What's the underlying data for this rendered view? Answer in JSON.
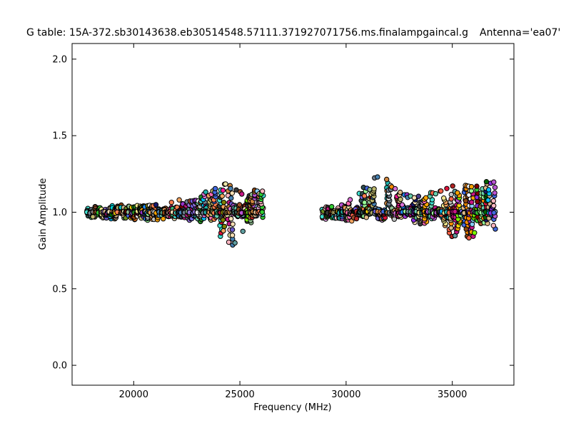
{
  "chart_data": {
    "type": "scatter",
    "title_left": "G table: 15A-372.sb30143638.eb30514548.57111.371927071756.ms.finalampgaincal.g",
    "title_right": "Antenna='ea07'",
    "xlabel": "Frequency (MHz)",
    "ylabel": "Gain Amplitude",
    "xlim": [
      17100,
      37900
    ],
    "ylim": [
      -0.13,
      2.102
    ],
    "x_ticks": [
      20000,
      25000,
      30000,
      35000
    ],
    "x_tick_labels": [
      "20000",
      "25000",
      "30000",
      "35000"
    ],
    "y_ticks": [
      0.0,
      0.5,
      1.0,
      1.5,
      2.0
    ],
    "y_tick_labels": [
      "0.0",
      "0.5",
      "1.0",
      "1.5",
      "2.0"
    ],
    "grid": false,
    "legend": "none",
    "description": "Gain amplitude vs frequency scatter; two receiver bands of colored circular markers clustered around gain 1.0 with a gap between 26150 and 28930 MHz; dip to ~0.78 near 24700 MHz and bumps to ~1.26 near 31600 and 35700 MHz.",
    "scatter": {
      "seed": 1337,
      "points_per_column": [
        9,
        16
      ],
      "tall_fraction": 0.28,
      "core_sigma": 0.02,
      "column_step_mhz": 130,
      "marker": {
        "radius": 3.2,
        "edge_color": "#000000",
        "edge_width": 1
      },
      "bands": [
        {
          "name": "lower-band",
          "f_start": 17850,
          "f_end": 26150,
          "envelope": [
            [
              17850,
              0.96,
              1.025
            ],
            [
              18600,
              0.952,
              1.035
            ],
            [
              19300,
              0.945,
              1.04
            ],
            [
              20000,
              0.945,
              1.045
            ],
            [
              20700,
              0.95,
              1.055
            ],
            [
              21500,
              0.952,
              1.07
            ],
            [
              22300,
              0.95,
              1.09
            ],
            [
              23000,
              0.948,
              1.11
            ],
            [
              23700,
              0.93,
              1.17
            ],
            [
              24200,
              0.82,
              1.2
            ],
            [
              24700,
              0.775,
              1.17
            ],
            [
              25100,
              0.86,
              1.13
            ],
            [
              25600,
              0.93,
              1.15
            ],
            [
              26150,
              0.955,
              1.15
            ]
          ]
        },
        {
          "name": "upper-band",
          "f_start": 28930,
          "f_end": 37100,
          "envelope": [
            [
              28930,
              0.955,
              1.03
            ],
            [
              29600,
              0.945,
              1.06
            ],
            [
              30300,
              0.94,
              1.1
            ],
            [
              31000,
              0.95,
              1.17
            ],
            [
              31600,
              0.955,
              1.26
            ],
            [
              32300,
              0.945,
              1.16
            ],
            [
              33000,
              0.935,
              1.11
            ],
            [
              33700,
              0.925,
              1.12
            ],
            [
              34400,
              0.86,
              1.14
            ],
            [
              35100,
              0.84,
              1.18
            ],
            [
              35700,
              0.815,
              1.26
            ],
            [
              36300,
              0.87,
              1.2
            ],
            [
              37100,
              0.89,
              1.21
            ]
          ]
        }
      ],
      "palette": [
        "#9370db",
        "#6a5acd",
        "#7b68ee",
        "#4169e1",
        "#1e90ff",
        "#00bfff",
        "#87cefa",
        "#4682b4",
        "#5f9ea0",
        "#20b2aa",
        "#00ced1",
        "#40e0d0",
        "#66cdaa",
        "#3cb371",
        "#2e8b57",
        "#228b22",
        "#32cd32",
        "#7cfc00",
        "#98fb98",
        "#8fbc8f",
        "#6b8e23",
        "#808000",
        "#bdb76b",
        "#f0e68c",
        "#eee8aa",
        "#d2b48c",
        "#deb887",
        "#f4a460",
        "#cd853f",
        "#d2691e",
        "#a0522d",
        "#8b4513",
        "#b22222",
        "#dc143c",
        "#ff6347",
        "#ff7f50",
        "#ff8c00",
        "#ffa500",
        "#ffd700",
        "#ff69b4",
        "#ff1493",
        "#c71585",
        "#da70d6",
        "#ba55d3",
        "#9932cc",
        "#8a2be2",
        "#483d8b",
        "#2f4f4f",
        "#708090",
        "#c0c0c0",
        "#f5deb3",
        "#ffb6c1",
        "#dda0dd",
        "#800000",
        "#191970",
        "#006400",
        "#f5f5f5",
        "#3a3a3a"
      ]
    }
  }
}
